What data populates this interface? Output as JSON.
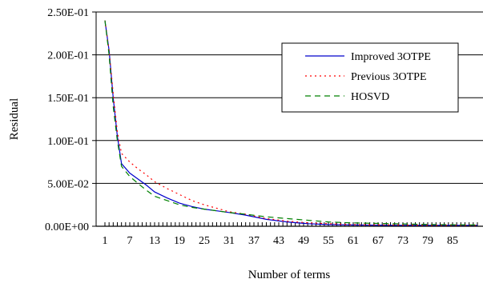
{
  "chart_data": {
    "type": "line",
    "title": "",
    "xlabel": "Number of terms",
    "ylabel": "Residual",
    "xlim": [
      1,
      91
    ],
    "ylim": [
      0,
      0.25
    ],
    "y_ticks": [
      0,
      0.05,
      0.1,
      0.15,
      0.2,
      0.25
    ],
    "y_tick_labels": [
      "0.00E+00",
      "5.00E-02",
      "1.00E-01",
      "1.50E-01",
      "2.00E-01",
      "2.50E-01"
    ],
    "x_ticks": [
      1,
      7,
      13,
      19,
      25,
      31,
      37,
      43,
      49,
      55,
      61,
      67,
      73,
      79,
      85
    ],
    "x_tick_labels": [
      "1",
      "7",
      "13",
      "19",
      "25",
      "31",
      "37",
      "43",
      "49",
      "55",
      "61",
      "67",
      "73",
      "79",
      "85"
    ],
    "grid": "horizontal",
    "legend_position": "top-right",
    "series": [
      {
        "name": "Improved 3OTPE",
        "color": "#0000cc",
        "style": "solid",
        "x": [
          1,
          2,
          3,
          4,
          5,
          7,
          9,
          11,
          13,
          16,
          19,
          22,
          25,
          28,
          31,
          35,
          40,
          45,
          50,
          55,
          60,
          70,
          80,
          91
        ],
        "y": [
          0.24,
          0.205,
          0.15,
          0.105,
          0.073,
          0.062,
          0.055,
          0.048,
          0.04,
          0.033,
          0.027,
          0.023,
          0.02,
          0.018,
          0.016,
          0.013,
          0.008,
          0.005,
          0.003,
          0.002,
          0.0015,
          0.001,
          0.001,
          0.001
        ]
      },
      {
        "name": "Previous 3OTPE",
        "color": "#ff0000",
        "style": "dotted",
        "x": [
          1,
          2,
          3,
          4,
          5,
          7,
          9,
          11,
          13,
          16,
          19,
          22,
          25,
          28,
          31,
          35,
          40,
          45,
          50,
          55,
          60,
          70,
          80,
          91
        ],
        "y": [
          0.24,
          0.205,
          0.155,
          0.11,
          0.085,
          0.075,
          0.067,
          0.06,
          0.052,
          0.044,
          0.037,
          0.03,
          0.025,
          0.021,
          0.017,
          0.014,
          0.009,
          0.006,
          0.004,
          0.003,
          0.002,
          0.0015,
          0.001,
          0.001
        ]
      },
      {
        "name": "HOSVD",
        "color": "#008000",
        "style": "dashed",
        "x": [
          1,
          2,
          3,
          4,
          5,
          7,
          9,
          11,
          13,
          16,
          19,
          22,
          25,
          28,
          31,
          35,
          40,
          45,
          50,
          55,
          60,
          70,
          80,
          91
        ],
        "y": [
          0.24,
          0.2,
          0.14,
          0.1,
          0.07,
          0.058,
          0.05,
          0.042,
          0.035,
          0.03,
          0.025,
          0.022,
          0.02,
          0.018,
          0.016,
          0.014,
          0.011,
          0.009,
          0.007,
          0.005,
          0.004,
          0.003,
          0.002,
          0.0015
        ]
      }
    ]
  }
}
